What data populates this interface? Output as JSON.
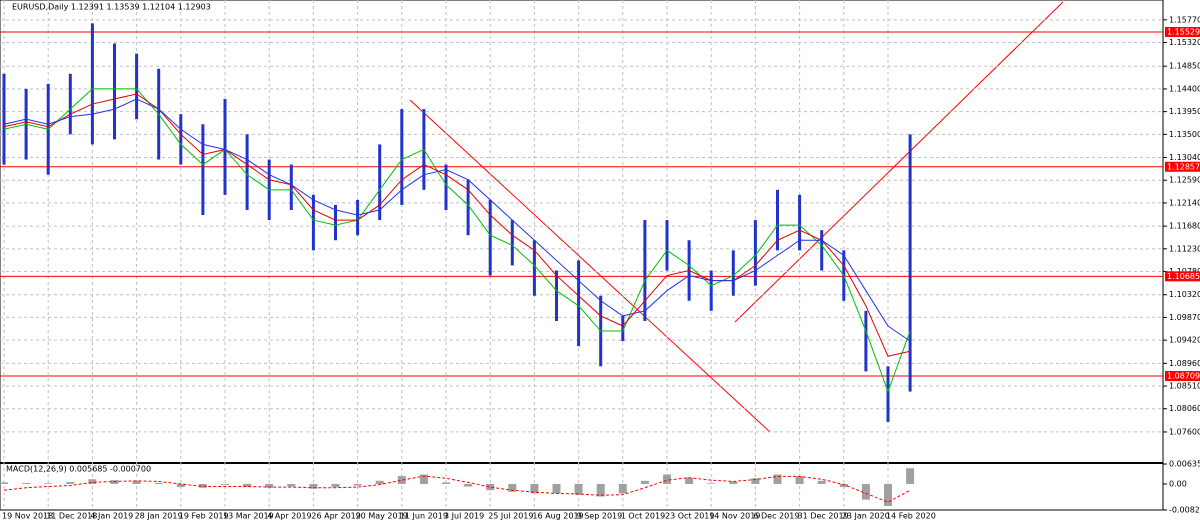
{
  "chart_data": {
    "type": "range",
    "title": "EURUSD,Daily  1.12391 1.13539 1.12104 1.12903",
    "categories": [
      "19 Nov 2018",
      null,
      "11 Dec 2018",
      null,
      "4 Jan 2019",
      null,
      "28 Jan 2019",
      null,
      "19 Feb 2019",
      null,
      "13 Mar 2019",
      null,
      "4 Apr 2019",
      null,
      "26 Apr 2019",
      null,
      "20 May 2019",
      null,
      "11 Jun 2019",
      null,
      "3 Jul 2019",
      null,
      "25 Jul 2019",
      null,
      "16 Aug 2019",
      null,
      "9 Sep 2019",
      null,
      "1 Oct 2019",
      null,
      "23 Oct 2019",
      null,
      "14 Nov 2019",
      null,
      "6 Dec 2019",
      null,
      "31 Dec 2019",
      null,
      "23 Jan 2020",
      null,
      "14 Feb 2020",
      null
    ],
    "high": [
      1.147,
      1.144,
      1.145,
      1.147,
      1.157,
      1.153,
      1.151,
      1.148,
      1.139,
      1.137,
      1.142,
      1.135,
      1.13,
      1.129,
      1.123,
      1.121,
      1.122,
      1.133,
      1.14,
      1.14,
      1.129,
      1.126,
      1.122,
      1.118,
      1.114,
      1.108,
      1.11,
      1.103,
      1.099,
      1.118,
      1.118,
      1.114,
      1.108,
      1.112,
      1.118,
      1.124,
      1.123,
      1.116,
      1.112,
      1.1,
      1.089,
      1.135
    ],
    "low": [
      1.129,
      1.13,
      1.127,
      1.135,
      1.133,
      1.134,
      1.138,
      1.13,
      1.129,
      1.119,
      1.123,
      1.12,
      1.118,
      1.12,
      1.112,
      1.114,
      1.115,
      1.118,
      1.121,
      1.124,
      1.12,
      1.115,
      1.107,
      1.109,
      1.103,
      1.098,
      1.093,
      1.089,
      1.094,
      1.098,
      1.108,
      1.102,
      1.1,
      1.103,
      1.105,
      1.112,
      1.112,
      1.108,
      1.102,
      1.088,
      1.078,
      1.084
    ],
    "color": "#2233cc",
    "moving_averages": [
      {
        "color": "#00c000",
        "values": [
          1.136,
          1.137,
          1.136,
          1.14,
          1.144,
          1.144,
          1.144,
          1.139,
          1.133,
          1.129,
          1.132,
          1.127,
          1.124,
          1.124,
          1.118,
          1.117,
          1.118,
          1.124,
          1.13,
          1.132,
          1.125,
          1.121,
          1.115,
          1.113,
          1.109,
          1.104,
          1.101,
          1.096,
          1.096,
          1.106,
          1.112,
          1.109,
          1.105,
          1.107,
          1.111,
          1.117,
          1.117,
          1.113,
          1.107,
          1.096,
          1.084,
          1.096
        ]
      },
      {
        "color": "#e00000",
        "values": [
          1.1365,
          1.1375,
          1.1365,
          1.139,
          1.141,
          1.142,
          1.143,
          1.14,
          1.135,
          1.131,
          1.132,
          1.129,
          1.126,
          1.125,
          1.12,
          1.118,
          1.118,
          1.121,
          1.126,
          1.129,
          1.127,
          1.124,
          1.119,
          1.115,
          1.112,
          1.107,
          1.103,
          1.099,
          1.097,
          1.102,
          1.107,
          1.108,
          1.106,
          1.106,
          1.109,
          1.114,
          1.116,
          1.114,
          1.109,
          1.101,
          1.091,
          1.092
        ]
      },
      {
        "color": "#2233ee",
        "values": [
          1.137,
          1.138,
          1.137,
          1.1385,
          1.139,
          1.14,
          1.142,
          1.14,
          1.136,
          1.133,
          1.132,
          1.13,
          1.127,
          1.125,
          1.122,
          1.12,
          1.119,
          1.12,
          1.124,
          1.127,
          1.128,
          1.126,
          1.122,
          1.118,
          1.114,
          1.11,
          1.106,
          1.102,
          1.099,
          1.1,
          1.104,
          1.107,
          1.106,
          1.106,
          1.108,
          1.111,
          1.114,
          1.114,
          1.111,
          1.104,
          1.097,
          1.094
        ]
      }
    ],
    "levels": [
      1.15529,
      1.12857,
      1.10685,
      1.08709
    ],
    "level_color": "#ff0000",
    "ylim": [
      1.07004,
      1.16163
    ],
    "yticks": [
      {
        "value": 1.1577,
        "label": "1.15770"
      },
      {
        "value": 1.1532,
        "label": "1.15320"
      },
      {
        "value": 1.1485,
        "label": "1.14850"
      },
      {
        "value": 1.144,
        "label": "1.14400"
      },
      {
        "value": 1.1395,
        "label": "1.13950"
      },
      {
        "value": 1.135,
        "label": "1.13500"
      },
      {
        "value": 1.1304,
        "label": "1.13040"
      },
      {
        "value": 1.1259,
        "label": "1.12590"
      },
      {
        "value": 1.1214,
        "label": "1.12140"
      },
      {
        "value": 1.1168,
        "label": "1.11680"
      },
      {
        "value": 1.1123,
        "label": "1.11230"
      },
      {
        "value": 1.1078,
        "label": "1.10780"
      },
      {
        "value": 1.1032,
        "label": "1.10320"
      },
      {
        "value": 1.0987,
        "label": "1.09870"
      },
      {
        "value": 1.0942,
        "label": "1.09420"
      },
      {
        "value": 1.0896,
        "label": "1.08960"
      },
      {
        "value": 1.0851,
        "label": "1.08510"
      },
      {
        "value": 1.0806,
        "label": "1.08060"
      },
      {
        "value": 1.076,
        "label": "1.07600"
      }
    ],
    "grid": true,
    "macd": {
      "title": "MACD(12,26,9) 0.005685 -0.000700",
      "histogram": [
        0.0005,
        0.0003,
        0.0002,
        0.0006,
        0.0015,
        0.0012,
        0.001,
        0.0003,
        -0.001,
        -0.0012,
        -0.0003,
        -0.001,
        -0.0012,
        -0.0008,
        -0.0015,
        -0.001,
        -0.0005,
        0.001,
        0.0025,
        0.003,
        0.0005,
        -0.0008,
        -0.002,
        -0.0025,
        -0.003,
        -0.003,
        -0.0035,
        -0.004,
        -0.003,
        0.001,
        0.003,
        0.002,
        0.0002,
        0.0008,
        0.0018,
        0.003,
        0.0025,
        0.001,
        -0.001,
        -0.005,
        -0.007,
        0.005
      ],
      "signal": [
        -0.002,
        -0.0012,
        -0.0008,
        -0.0005,
        0.0005,
        0.0008,
        0.001,
        0.0008,
        0.0,
        -0.0008,
        -0.0008,
        -0.0008,
        -0.001,
        -0.001,
        -0.0012,
        -0.0012,
        -0.001,
        -0.0002,
        0.0012,
        0.0025,
        0.0018,
        0.0005,
        -0.001,
        -0.002,
        -0.0026,
        -0.003,
        -0.0032,
        -0.0036,
        -0.0034,
        -0.0012,
        0.0012,
        0.002,
        0.0012,
        0.0008,
        0.0014,
        0.0024,
        0.0024,
        0.0015,
        -0.0002,
        -0.003,
        -0.0058,
        -0.002
      ],
      "color": "#a0a0a0",
      "signal_color": "#ff0000",
      "ylim": [
        -0.008289,
        0.00635
      ],
      "yticks": [
        0.00635,
        {
          "value": 0,
          "label": "0.00"
        },
        -0.008289
      ]
    }
  }
}
